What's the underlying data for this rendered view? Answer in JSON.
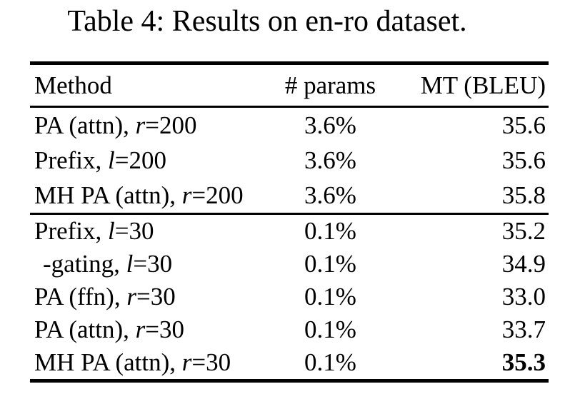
{
  "page": {
    "background": "#ffffff",
    "text_color": "#000000",
    "rule_color": "#000000"
  },
  "caption": "Table 4: Results on en-ro dataset.",
  "table": {
    "columns": [
      {
        "id": "method",
        "label": "Method",
        "align": "left"
      },
      {
        "id": "params",
        "label": "# params",
        "align": "center"
      },
      {
        "id": "bleu",
        "label": "MT (BLEU)",
        "align": "right"
      }
    ],
    "groups": [
      {
        "rows": [
          {
            "method_pre": "PA (attn), ",
            "method_var": "r",
            "method_post": "=200",
            "params": "3.6%",
            "bleu": "35.6",
            "bleu_bold": false,
            "indent": false
          },
          {
            "method_pre": "Prefix, ",
            "method_var": "l",
            "method_post": "=200",
            "params": "3.6%",
            "bleu": "35.6",
            "bleu_bold": false,
            "indent": false
          },
          {
            "method_pre": "MH PA (attn), ",
            "method_var": "r",
            "method_post": "=200",
            "params": "3.6%",
            "bleu": "35.8",
            "bleu_bold": false,
            "indent": false
          }
        ]
      },
      {
        "rows": [
          {
            "method_pre": "Prefix, ",
            "method_var": "l",
            "method_post": "=30",
            "params": "0.1%",
            "bleu": "35.2",
            "bleu_bold": false,
            "indent": false
          },
          {
            "method_pre": "-gating, ",
            "method_var": "l",
            "method_post": "=30",
            "params": "0.1%",
            "bleu": "34.9",
            "bleu_bold": false,
            "indent": true
          },
          {
            "method_pre": "PA (ffn), ",
            "method_var": "r",
            "method_post": "=30",
            "params": "0.1%",
            "bleu": "33.0",
            "bleu_bold": false,
            "indent": false
          },
          {
            "method_pre": "PA (attn), ",
            "method_var": "r",
            "method_post": "=30",
            "params": "0.1%",
            "bleu": "33.7",
            "bleu_bold": false,
            "indent": false
          },
          {
            "method_pre": "MH PA (attn), ",
            "method_var": "r",
            "method_post": "=30",
            "params": "0.1%",
            "bleu": "35.3",
            "bleu_bold": true,
            "indent": false
          }
        ]
      }
    ]
  }
}
